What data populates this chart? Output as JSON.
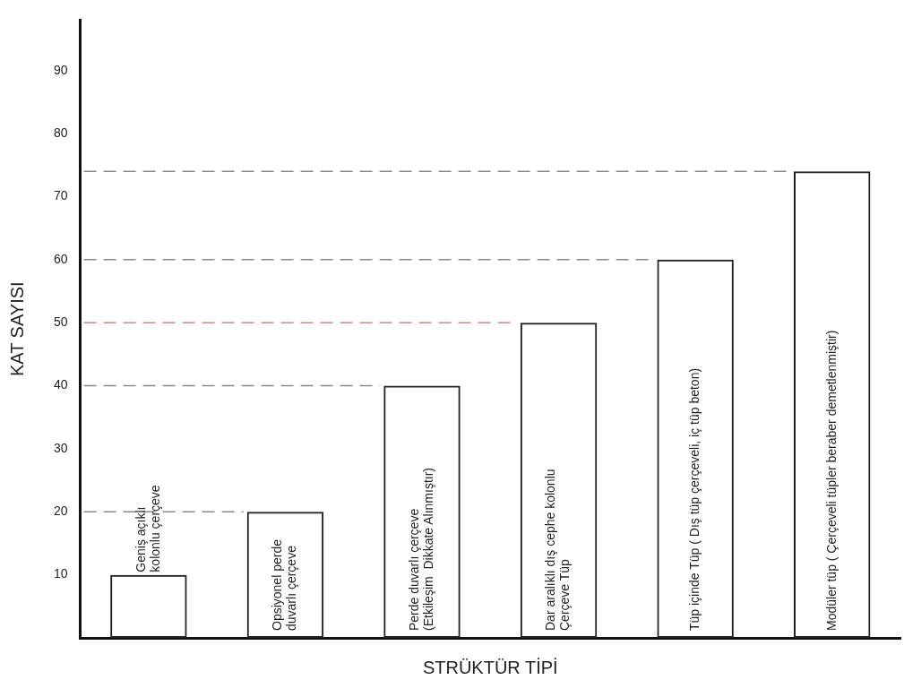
{
  "chart_data": {
    "type": "bar",
    "xlabel": "STRÜKTÜR TİPİ",
    "ylabel": "KAT SAYISI",
    "categories": [
      "Geniş açıklı\nkolonlu çerçeve",
      "Opsiyonel perde\nduvarlı çerçeve",
      "Perde duvarlı çerçeve\n(Etkileşim  Dikkate Alınmıştır)",
      "Dar aralıklı dış cephe kolonlu\nÇerçeve Tüp",
      "Tüp içinde Tüp ( Dış tüp çerçeveli, iç tüp beton)",
      "Modüler tüp ( Çerçeveli tüpler beraber demetlenmiştir)"
    ],
    "values": [
      10,
      20,
      40,
      50,
      60,
      74
    ],
    "color": "#222222",
    "ylim": [
      0,
      98
    ],
    "yticks": [
      10,
      20,
      30,
      40,
      50,
      60,
      70,
      80,
      90
    ],
    "grid": false,
    "legend": false,
    "ref_lines": [
      {
        "axis": "y",
        "value": 20,
        "color": "#8a8a8a",
        "line_style": "dashed"
      },
      {
        "axis": "y",
        "value": 40,
        "color": "#8a8a8a",
        "line_style": "dashed"
      },
      {
        "axis": "y",
        "value": 50,
        "color": "#c48a8a",
        "line_style": "dashed"
      },
      {
        "axis": "y",
        "value": 60,
        "color": "#8a8a8a",
        "line_style": "dashed"
      },
      {
        "axis": "y",
        "value": 74,
        "color": "#8a8a8a",
        "line_style": "dashed"
      }
    ]
  }
}
